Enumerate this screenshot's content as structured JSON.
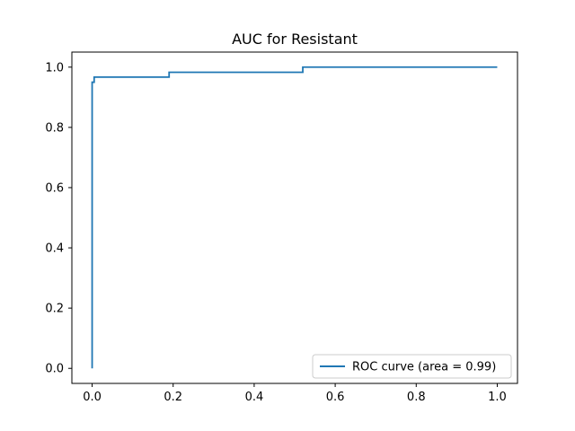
{
  "chart_data": {
    "type": "line",
    "title": "AUC for Resistant",
    "xlabel": "",
    "ylabel": "",
    "xlim": [
      -0.05,
      1.05
    ],
    "ylim": [
      -0.05,
      1.05
    ],
    "grid": false,
    "x_ticks": [
      0.0,
      0.2,
      0.4,
      0.6,
      0.8,
      1.0
    ],
    "x_tick_labels": [
      "0.0",
      "0.2",
      "0.4",
      "0.6",
      "0.8",
      "1.0"
    ],
    "y_ticks": [
      0.0,
      0.2,
      0.4,
      0.6,
      0.8,
      1.0
    ],
    "y_tick_labels": [
      "0.0",
      "0.2",
      "0.4",
      "0.6",
      "0.8",
      "1.0"
    ],
    "legend_position": "lower-right",
    "series": [
      {
        "name": "ROC curve (area = 0.99)",
        "color": "#1f77b4",
        "x": [
          0.0,
          0.0,
          0.005,
          0.005,
          0.19,
          0.19,
          0.52,
          0.52,
          1.0
        ],
        "y": [
          0.0,
          0.95,
          0.95,
          0.967,
          0.967,
          0.983,
          0.983,
          1.0,
          1.0
        ]
      }
    ]
  }
}
